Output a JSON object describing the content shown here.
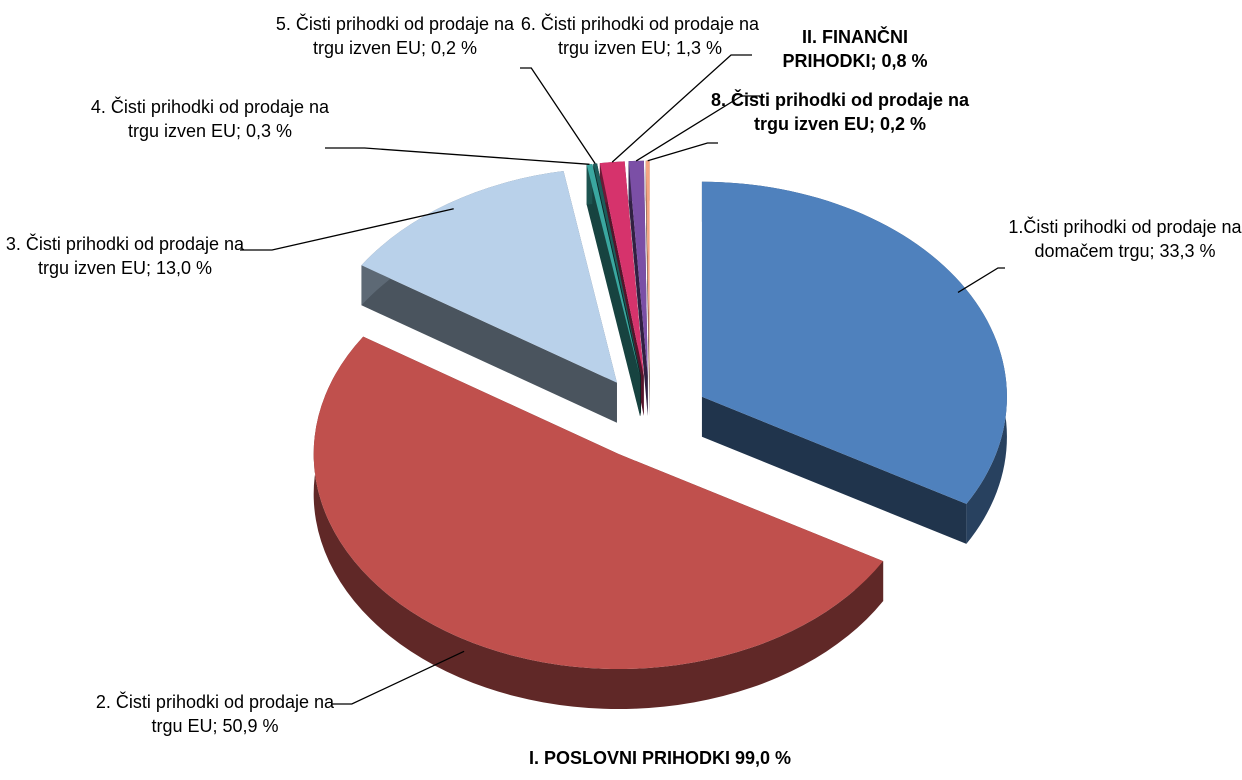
{
  "chart_data": {
    "type": "pie3d",
    "values": [
      33.3,
      50.9,
      13.0,
      0.3,
      0.2,
      1.3,
      0.8,
      0.2
    ],
    "value_labels": [
      "1.Čisti prihodki od prodaje na domačem trgu; 33,3 %",
      "2. Čisti prihodki od prodaje na trgu EU; 50,9 %",
      "3. Čisti prihodki od prodaje na trgu izven EU; 13,0 %",
      "4. Čisti prihodki od prodaje na trgu izven EU; 0,3 %",
      "5. Čisti prihodki od prodaje na trgu izven EU; 0,2 %",
      "6. Čisti prihodki od prodaje na trgu izven EU; 1,3 %",
      "II. FINANČNI PRIHODKI; 0,8 %",
      "8. Čisti prihodki od prodaje na trgu izven EU; 0,2 %"
    ],
    "colors": [
      "#4f81bd",
      "#c0504d",
      "#b9d1ea",
      "#3aa7a0",
      "#1d5c5a",
      "#d6336c",
      "#7b4fa6",
      "#f4a582"
    ],
    "bold": [
      false,
      false,
      false,
      false,
      false,
      false,
      true,
      true
    ],
    "annotation": "I. POSLOVNI PRIHODKI 99,0 %"
  }
}
